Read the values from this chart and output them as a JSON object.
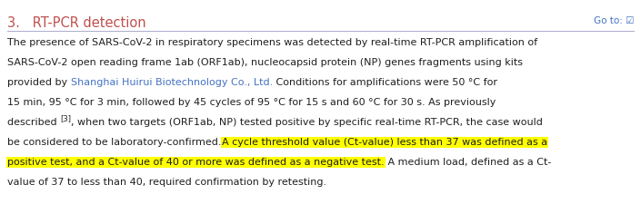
{
  "title": "3.   RT-PCR detection",
  "goto_text": "Go to: ☑",
  "title_color": "#C0504D",
  "goto_color": "#4472C4",
  "title_fontsize": 10.5,
  "body_fontsize": 8.0,
  "sup_fontsize": 6.0,
  "background_color": "#ffffff",
  "divider_color": "#AAAACC",
  "highlight_color": "#FFFF00",
  "body_color": "#1F1F1F",
  "shanghai_color": "#4472C4",
  "lines": [
    {
      "type": "plain",
      "text": "The presence of SARS-CoV-2 in respiratory specimens was detected by real-time RT-PCR amplification of"
    },
    {
      "type": "plain",
      "text": "SARS-CoV-2 open reading frame 1ab (ORF1ab), nucleocapsid protein (NP) genes fragments using kits"
    },
    {
      "type": "mixed",
      "parts": [
        {
          "text": "provided by ",
          "color": "#1F1F1F",
          "highlight": false,
          "sup": false
        },
        {
          "text": "Shanghai Huirui Biotechnology Co., Ltd.",
          "color": "#4472C4",
          "highlight": false,
          "sup": false
        },
        {
          "text": " Conditions for amplifications were 50 °C for",
          "color": "#1F1F1F",
          "highlight": false,
          "sup": false
        }
      ]
    },
    {
      "type": "plain",
      "text": "15 min, 95 °C for 3 min, followed by 45 cycles of 95 °C for 15 s and 60 °C for 30 s. As previously"
    },
    {
      "type": "mixed",
      "parts": [
        {
          "text": "described ",
          "color": "#1F1F1F",
          "highlight": false,
          "sup": false
        },
        {
          "text": "[3]",
          "color": "#1F1F1F",
          "highlight": false,
          "sup": true
        },
        {
          "text": ", when two targets (ORF1ab, NP) tested positive by specific real-time RT-PCR, the case would",
          "color": "#1F1F1F",
          "highlight": false,
          "sup": false
        }
      ]
    },
    {
      "type": "mixed",
      "parts": [
        {
          "text": "be considered to be laboratory-confirmed.",
          "color": "#1F1F1F",
          "highlight": false,
          "sup": false
        },
        {
          "text": "A cycle threshold value (Ct-value) less than 37 was defined as a",
          "color": "#1F1F1F",
          "highlight": true,
          "sup": false
        }
      ]
    },
    {
      "type": "mixed",
      "parts": [
        {
          "text": "positive test, and a Ct-value of 40 or more was defined as a negative test.",
          "color": "#1F1F1F",
          "highlight": true,
          "sup": false
        },
        {
          "text": " A medium load, defined as a Ct-",
          "color": "#1F1F1F",
          "highlight": false,
          "sup": false
        }
      ]
    },
    {
      "type": "plain",
      "text": "value of 37 to less than 40, required confirmation by retesting."
    }
  ]
}
